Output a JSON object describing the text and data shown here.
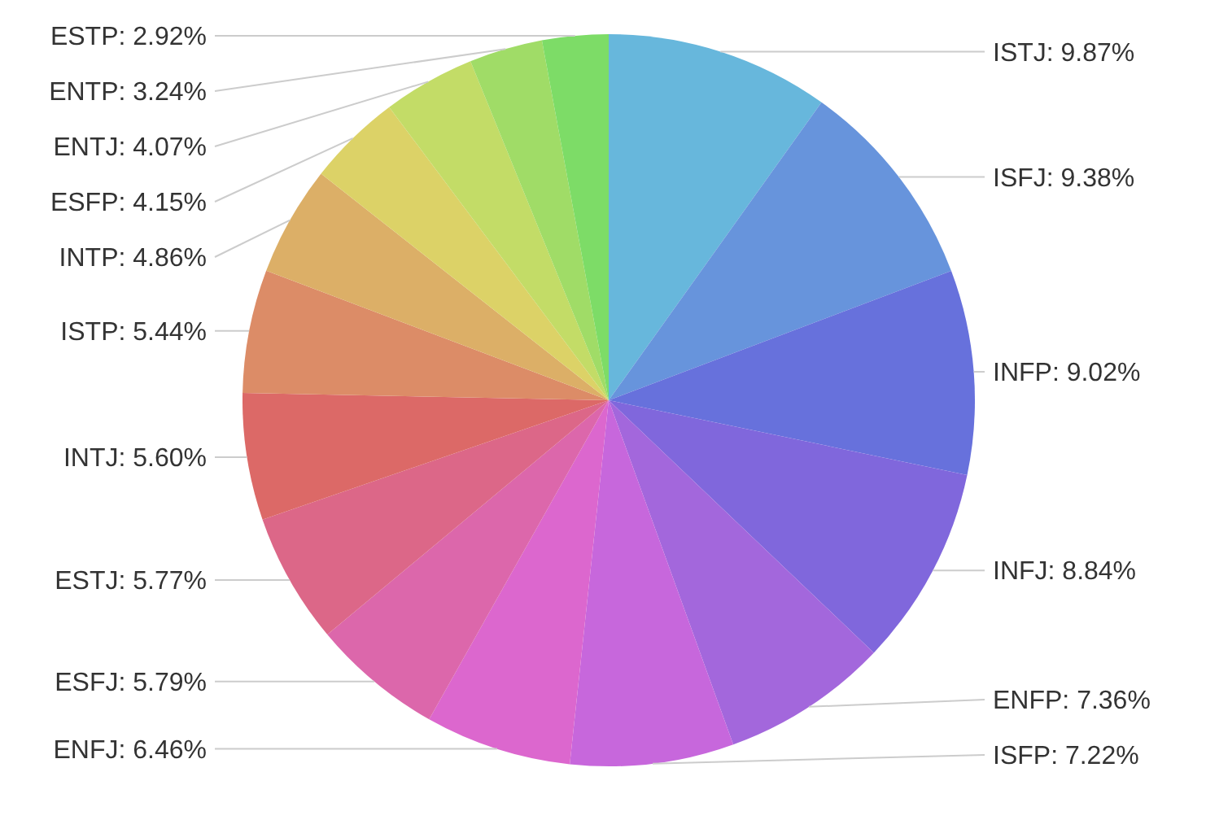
{
  "chart_data": {
    "type": "pie",
    "categories": [
      "ISTJ",
      "ISFJ",
      "INFP",
      "INFJ",
      "ENFP",
      "ISFP",
      "ENFJ",
      "ESFJ",
      "ESTJ",
      "INTJ",
      "ISTP",
      "INTP",
      "ESFP",
      "ENTJ",
      "ENTP",
      "ESTP"
    ],
    "values": [
      9.87,
      9.38,
      9.02,
      8.84,
      7.36,
      7.22,
      6.46,
      5.79,
      5.77,
      5.6,
      5.44,
      4.86,
      4.15,
      4.07,
      3.24,
      2.92
    ],
    "value_labels": [
      "9.87%",
      "9.38%",
      "9.02%",
      "8.84%",
      "7.36%",
      "7.22%",
      "6.46%",
      "5.79%",
      "5.77%",
      "5.60%",
      "5.44%",
      "4.86%",
      "4.15%",
      "4.07%",
      "3.24%",
      "2.92%"
    ],
    "colors": [
      "#67b7dc",
      "#6794dc",
      "#6771dc",
      "#8067dc",
      "#a367dc",
      "#c767dc",
      "#dc67ce",
      "#dc67ab",
      "#dc6788",
      "#dc6967",
      "#dc8c67",
      "#dcaf67",
      "#dcd267",
      "#c3dc67",
      "#a0dc67",
      "#7ddc67"
    ]
  }
}
